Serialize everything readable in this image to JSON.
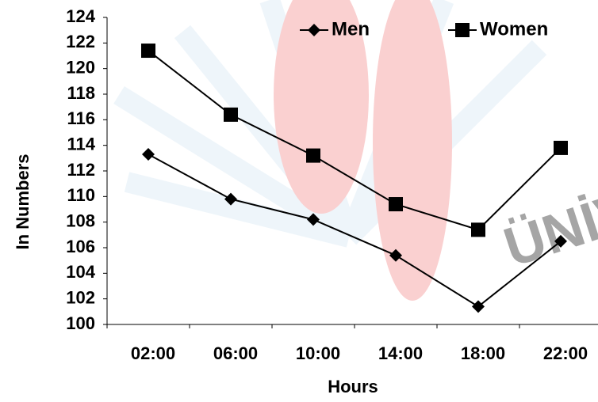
{
  "chart_data": {
    "type": "line",
    "y_label": "In Numbers",
    "x_label": "Hours",
    "categories": [
      "02:00",
      "06:00",
      "10:00",
      "14:00",
      "18:00",
      "22:00"
    ],
    "series": [
      {
        "name": "Men",
        "color": "#000000",
        "marker": "diamond",
        "values": [
          113.3,
          109.8,
          108.2,
          105.4,
          101.4,
          106.5
        ]
      },
      {
        "name": "Women",
        "color": "#000000",
        "marker": "square",
        "values": [
          121.4,
          116.4,
          113.2,
          109.4,
          107.4,
          113.8
        ]
      }
    ],
    "ylim": [
      100,
      124
    ],
    "yticks": [
      100,
      102,
      104,
      106,
      108,
      110,
      112,
      114,
      116,
      118,
      120,
      122,
      124
    ],
    "grid": false,
    "legend": "top-right"
  }
}
